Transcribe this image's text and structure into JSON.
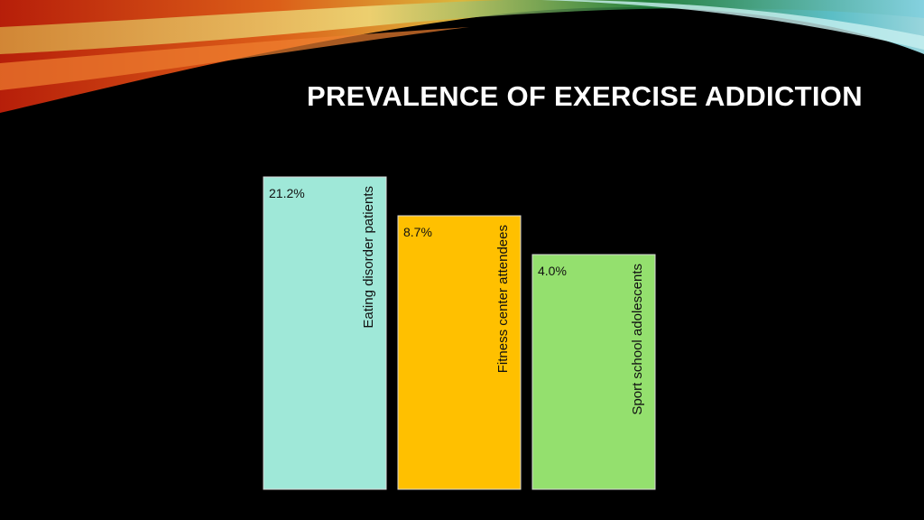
{
  "slide": {
    "title": "PREVALENCE OF EXERCISE ADDICTION",
    "boxes": [
      {
        "value": "21.2%",
        "label": "Eating disorder patients"
      },
      {
        "value": "8.7%",
        "label": "Fitness center attendees"
      },
      {
        "value": "4.0%",
        "label": "Sport school adolescents"
      }
    ]
  }
}
